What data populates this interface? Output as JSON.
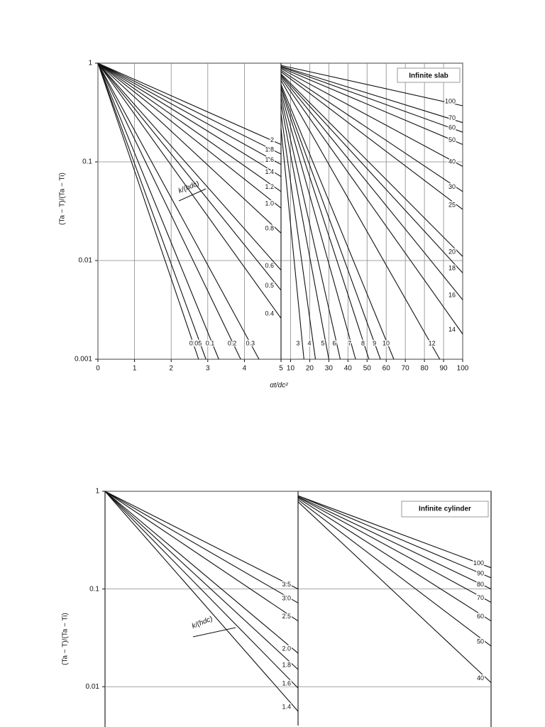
{
  "chart_data": [
    {
      "type": "line",
      "title": "Infinite slab",
      "ylabel": "(Ta − T)/(Ta − Ti)",
      "xlabel": "αt/dc²",
      "annotation": "k/(hdc)",
      "log_y": true,
      "grid": true,
      "xbreak": 5,
      "color": "#111111",
      "xlim": [
        0,
        100
      ],
      "ylim": [
        0.001,
        1
      ],
      "xticks": [
        0,
        1,
        2,
        3,
        4,
        5,
        10,
        20,
        30,
        40,
        50,
        60,
        70,
        80,
        90,
        100
      ],
      "yticks": [
        1,
        0.1,
        0.01,
        0.001
      ],
      "series": [
        {
          "name": "0",
          "x": [
            0,
            2.75
          ],
          "values": [
            1,
            0.001
          ]
        },
        {
          "name": "0.05",
          "x": [
            0,
            2.95
          ],
          "values": [
            1,
            0.001
          ]
        },
        {
          "name": "0.1",
          "x": [
            0,
            3.3
          ],
          "values": [
            1,
            0.001
          ]
        },
        {
          "name": "0.2",
          "x": [
            0,
            3.9
          ],
          "values": [
            1,
            0.001
          ]
        },
        {
          "name": "0.3",
          "x": [
            0,
            4.4
          ],
          "values": [
            1,
            0.001
          ]
        },
        {
          "name": "0.4",
          "x": [
            0,
            5
          ],
          "values": [
            1,
            0.0026
          ]
        },
        {
          "name": "0.5",
          "x": [
            0,
            5
          ],
          "values": [
            1,
            0.005
          ]
        },
        {
          "name": "0.6",
          "x": [
            0,
            5
          ],
          "values": [
            1,
            0.008
          ]
        },
        {
          "name": "0.8",
          "x": [
            0,
            5
          ],
          "values": [
            1,
            0.019
          ]
        },
        {
          "name": "1.0",
          "x": [
            0,
            5
          ],
          "values": [
            1,
            0.034
          ]
        },
        {
          "name": "1.2",
          "x": [
            0,
            5
          ],
          "values": [
            1,
            0.05
          ]
        },
        {
          "name": "1.4",
          "x": [
            0,
            5
          ],
          "values": [
            1,
            0.071
          ]
        },
        {
          "name": "1.6",
          "x": [
            0,
            5
          ],
          "values": [
            1,
            0.094
          ]
        },
        {
          "name": "1.8",
          "x": [
            0,
            5
          ],
          "values": [
            1,
            0.12
          ]
        },
        {
          "name": "2",
          "x": [
            0,
            5
          ],
          "values": [
            1,
            0.15
          ]
        },
        {
          "name": "3",
          "x": [
            5,
            17
          ],
          "values": [
            0.22,
            0.001
          ]
        },
        {
          "name": "4",
          "x": [
            5,
            23
          ],
          "values": [
            0.31,
            0.001
          ]
        },
        {
          "name": "5",
          "x": [
            5,
            30
          ],
          "values": [
            0.39,
            0.001
          ]
        },
        {
          "name": "6",
          "x": [
            5,
            36
          ],
          "values": [
            0.45,
            0.001
          ]
        },
        {
          "name": "7",
          "x": [
            5,
            44
          ],
          "values": [
            0.5,
            0.001
          ]
        },
        {
          "name": "8",
          "x": [
            5,
            51
          ],
          "values": [
            0.55,
            0.001
          ]
        },
        {
          "name": "9",
          "x": [
            5,
            57
          ],
          "values": [
            0.58,
            0.001
          ]
        },
        {
          "name": "10",
          "x": [
            5,
            64
          ],
          "values": [
            0.61,
            0.001
          ]
        },
        {
          "name": "12",
          "x": [
            5,
            88
          ],
          "values": [
            0.67,
            0.001
          ]
        },
        {
          "name": "14",
          "x": [
            5,
            100
          ],
          "values": [
            0.71,
            0.0018
          ]
        },
        {
          "name": "16",
          "x": [
            5,
            100
          ],
          "values": [
            0.74,
            0.004
          ]
        },
        {
          "name": "18",
          "x": [
            5,
            100
          ],
          "values": [
            0.76,
            0.0075
          ]
        },
        {
          "name": "20",
          "x": [
            5,
            100
          ],
          "values": [
            0.78,
            0.011
          ]
        },
        {
          "name": "25",
          "x": [
            5,
            100
          ],
          "values": [
            0.82,
            0.033
          ]
        },
        {
          "name": "30",
          "x": [
            5,
            100
          ],
          "values": [
            0.85,
            0.05
          ]
        },
        {
          "name": "40",
          "x": [
            5,
            100
          ],
          "values": [
            0.88,
            0.09
          ]
        },
        {
          "name": "50",
          "x": [
            5,
            100
          ],
          "values": [
            0.9,
            0.15
          ]
        },
        {
          "name": "60",
          "x": [
            5,
            100
          ],
          "values": [
            0.92,
            0.2
          ]
        },
        {
          "name": "70",
          "x": [
            5,
            100
          ],
          "values": [
            0.93,
            0.25
          ]
        },
        {
          "name": "100",
          "x": [
            5,
            100
          ],
          "values": [
            0.95,
            0.37
          ]
        }
      ]
    },
    {
      "type": "line",
      "title": "Infinite cylinder",
      "ylabel": "(Ta − T)/(Ta − Ti)",
      "annotation": "k/(hdc)",
      "log_y": true,
      "grid": true,
      "xbreak": 5,
      "color": "#111111",
      "xlim": [
        0,
        100
      ],
      "ylim": [
        0.004,
        1
      ],
      "yticks": [
        1,
        0.1,
        0.01
      ],
      "series": [
        {
          "name": "1.4",
          "x": [
            0,
            5
          ],
          "values": [
            1,
            0.0056
          ]
        },
        {
          "name": "1.6",
          "x": [
            0,
            5
          ],
          "values": [
            1,
            0.0097
          ]
        },
        {
          "name": "1.8",
          "x": [
            0,
            5
          ],
          "values": [
            1,
            0.015
          ]
        },
        {
          "name": "2.0",
          "x": [
            0,
            5
          ],
          "values": [
            1,
            0.022
          ]
        },
        {
          "name": "2.5",
          "x": [
            0,
            5
          ],
          "values": [
            1,
            0.047
          ]
        },
        {
          "name": "3.0",
          "x": [
            0,
            5
          ],
          "values": [
            1,
            0.072
          ]
        },
        {
          "name": "3.5",
          "x": [
            0,
            5
          ],
          "values": [
            1,
            0.1
          ]
        },
        {
          "name": "40",
          "x": [
            5,
            100
          ],
          "values": [
            0.78,
            0.011
          ]
        },
        {
          "name": "50",
          "x": [
            5,
            100
          ],
          "values": [
            0.82,
            0.026
          ]
        },
        {
          "name": "60",
          "x": [
            5,
            100
          ],
          "values": [
            0.85,
            0.047
          ]
        },
        {
          "name": "70",
          "x": [
            5,
            100
          ],
          "values": [
            0.87,
            0.073
          ]
        },
        {
          "name": "80",
          "x": [
            5,
            100
          ],
          "values": [
            0.88,
            0.1
          ]
        },
        {
          "name": "90",
          "x": [
            5,
            100
          ],
          "values": [
            0.9,
            0.13
          ]
        },
        {
          "name": "100",
          "x": [
            5,
            100
          ],
          "values": [
            0.9,
            0.165
          ]
        }
      ]
    }
  ]
}
